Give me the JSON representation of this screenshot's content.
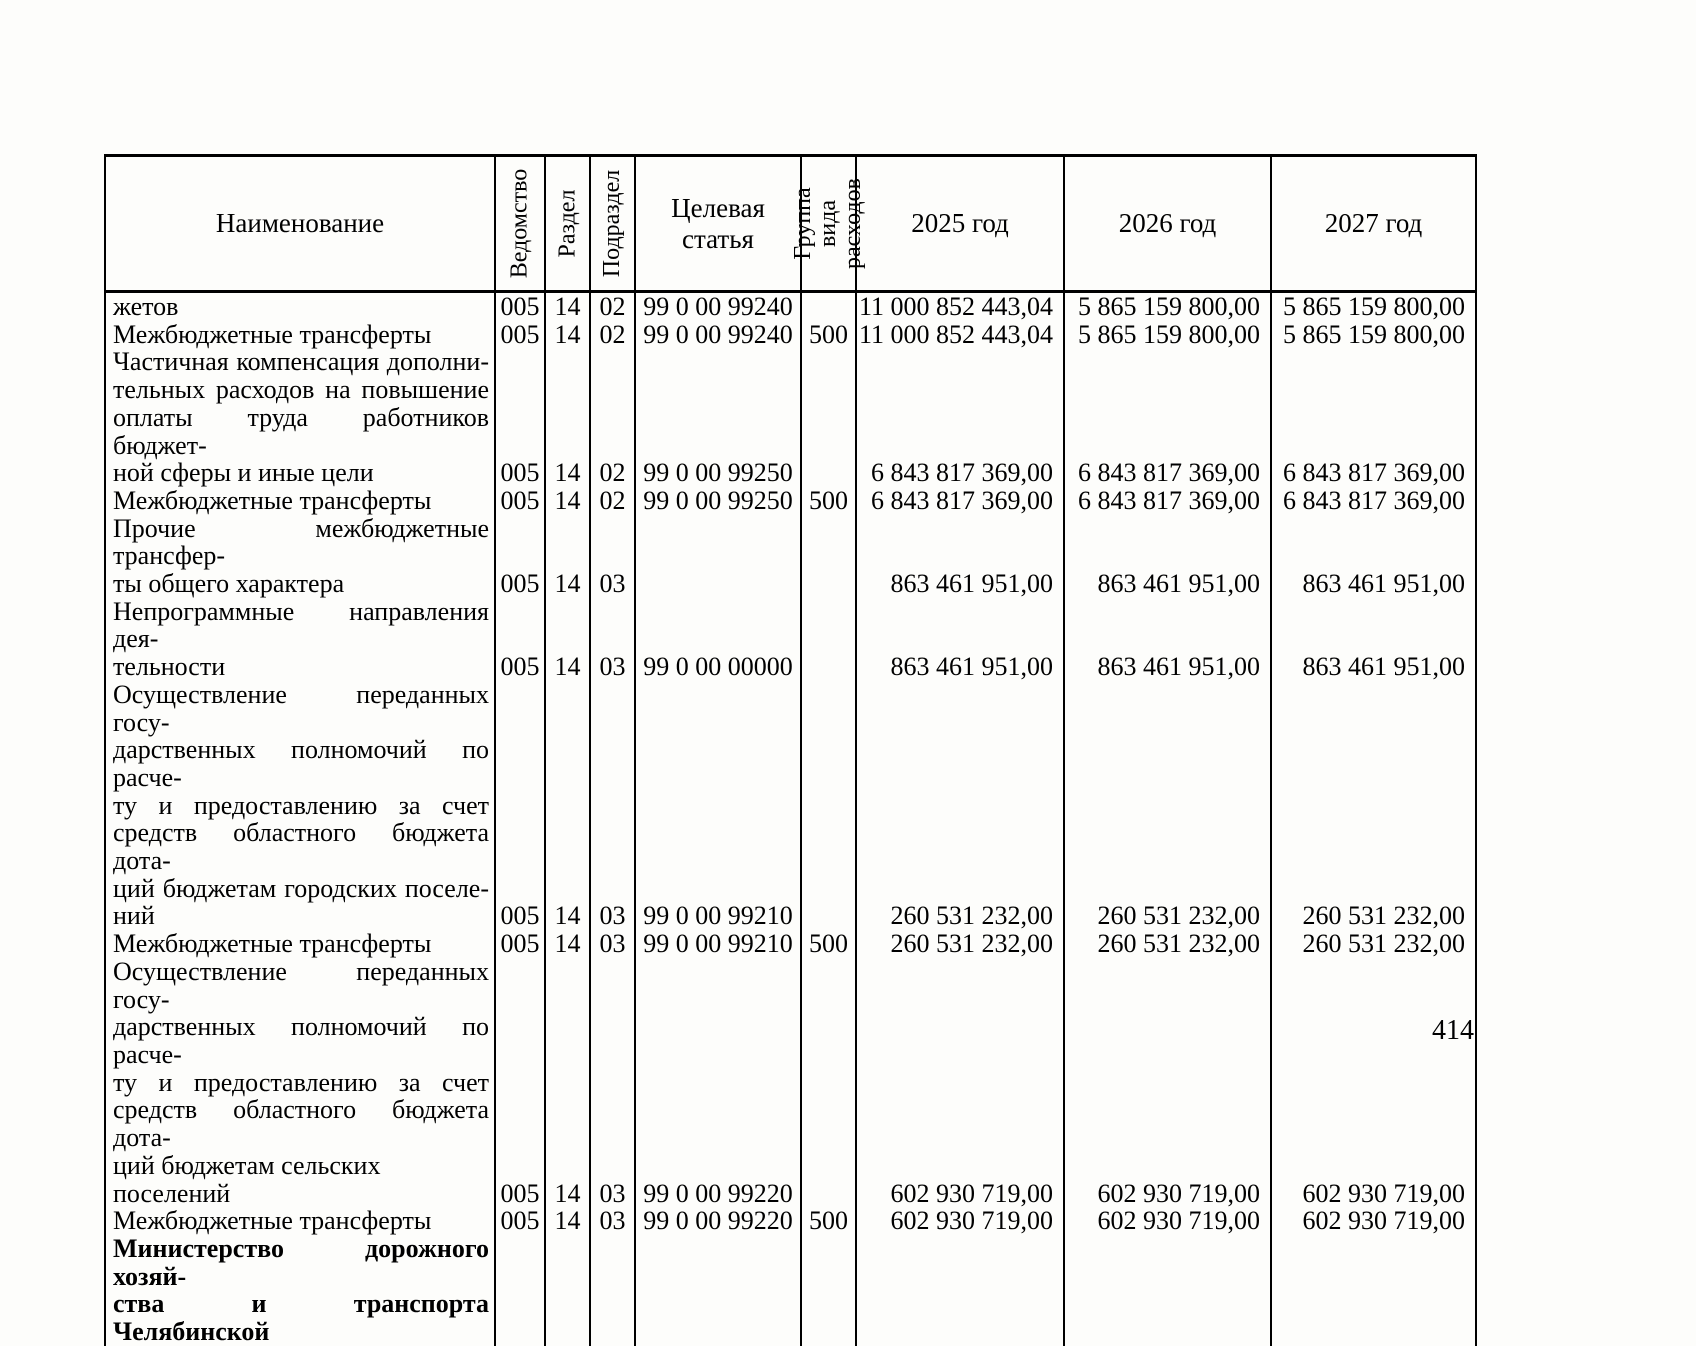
{
  "page": {
    "number": "414"
  },
  "table": {
    "headers": {
      "name": "Наименование",
      "vedomstvo": "Ведомство",
      "razdel": "Раздел",
      "podrazdel": "Подраздел",
      "target_article": "Целевая статья",
      "expense_group": "Группа вида\nрасходов",
      "year_2025": "2025 год",
      "year_2026": "2026 год",
      "year_2027": "2027 год"
    },
    "rows": [
      {
        "name_lines": [
          "жетов"
        ],
        "bold": false,
        "justify_last": false,
        "vedomstvo": "005",
        "razdel": "14",
        "podrazdel": "02",
        "target_article": "99 0 00 99240",
        "expense_group": "",
        "y2025": "11 000 852 443,04",
        "y2026": "5 865 159 800,00",
        "y2027": "5 865 159 800,00"
      },
      {
        "name_lines": [
          "Межбюджетные трансферты"
        ],
        "bold": false,
        "justify_last": false,
        "vedomstvo": "005",
        "razdel": "14",
        "podrazdel": "02",
        "target_article": "99 0 00 99240",
        "expense_group": "500",
        "y2025": "11 000 852 443,04",
        "y2026": "5 865 159 800,00",
        "y2027": "5 865 159 800,00"
      },
      {
        "name_lines": [
          "Частичная компенсация дополни-",
          "тельных расходов на повышение",
          "оплаты труда работников бюджет-",
          "ной сферы и иные цели"
        ],
        "bold": false,
        "justify_last": false,
        "vedomstvo": "005",
        "razdel": "14",
        "podrazdel": "02",
        "target_article": "99 0 00 99250",
        "expense_group": "",
        "y2025": "6 843 817 369,00",
        "y2026": "6 843 817 369,00",
        "y2027": "6 843 817 369,00"
      },
      {
        "name_lines": [
          "Межбюджетные трансферты"
        ],
        "bold": false,
        "justify_last": false,
        "vedomstvo": "005",
        "razdel": "14",
        "podrazdel": "02",
        "target_article": "99 0 00 99250",
        "expense_group": "500",
        "y2025": "6 843 817 369,00",
        "y2026": "6 843 817 369,00",
        "y2027": "6 843 817 369,00"
      },
      {
        "name_lines": [
          "Прочие межбюджетные трансфер-",
          "ты общего характера"
        ],
        "bold": false,
        "justify_last": false,
        "vedomstvo": "005",
        "razdel": "14",
        "podrazdel": "03",
        "target_article": "",
        "expense_group": "",
        "y2025": "863 461 951,00",
        "y2026": "863 461 951,00",
        "y2027": "863 461 951,00"
      },
      {
        "name_lines": [
          "Непрограммные направления дея-",
          "тельности"
        ],
        "bold": false,
        "justify_last": false,
        "vedomstvo": "005",
        "razdel": "14",
        "podrazdel": "03",
        "target_article": "99 0 00 00000",
        "expense_group": "",
        "y2025": "863 461 951,00",
        "y2026": "863 461 951,00",
        "y2027": "863 461 951,00"
      },
      {
        "name_lines": [
          "Осуществление переданных госу-",
          "дарственных полномочий по расче-",
          "ту и предоставлению за счет",
          "средств областного бюджета дота-",
          "ций бюджетам городских поселе-",
          "ний"
        ],
        "bold": false,
        "justify_last": false,
        "vedomstvo": "005",
        "razdel": "14",
        "podrazdel": "03",
        "target_article": "99 0 00 99210",
        "expense_group": "",
        "y2025": "260 531 232,00",
        "y2026": "260 531 232,00",
        "y2027": "260 531 232,00"
      },
      {
        "name_lines": [
          "Межбюджетные трансферты"
        ],
        "bold": false,
        "justify_last": false,
        "vedomstvo": "005",
        "razdel": "14",
        "podrazdel": "03",
        "target_article": "99 0 00 99210",
        "expense_group": "500",
        "y2025": "260 531 232,00",
        "y2026": "260 531 232,00",
        "y2027": "260 531 232,00"
      },
      {
        "name_lines": [
          "Осуществление переданных госу-",
          "дарственных полномочий по расче-",
          "ту и предоставлению за счет",
          "средств областного бюджета дота-",
          "ций бюджетам сельских поселений"
        ],
        "bold": false,
        "justify_last": false,
        "vedomstvo": "005",
        "razdel": "14",
        "podrazdel": "03",
        "target_article": "99 0 00 99220",
        "expense_group": "",
        "y2025": "602 930 719,00",
        "y2026": "602 930 719,00",
        "y2027": "602 930 719,00"
      },
      {
        "name_lines": [
          "Межбюджетные трансферты"
        ],
        "bold": false,
        "justify_last": false,
        "vedomstvo": "005",
        "razdel": "14",
        "podrazdel": "03",
        "target_article": "99 0 00 99220",
        "expense_group": "500",
        "y2025": "602 930 719,00",
        "y2026": "602 930 719,00",
        "y2027": "602 930 719,00"
      },
      {
        "name_lines": [
          "Министерство дорожного хозяй-",
          "ства и транспорта Челябинской"
        ],
        "bold": true,
        "justify_last": true,
        "vedomstvo": "",
        "razdel": "",
        "podrazdel": "",
        "target_article": "",
        "expense_group": "",
        "y2025": "",
        "y2026": "",
        "y2027": ""
      }
    ]
  }
}
